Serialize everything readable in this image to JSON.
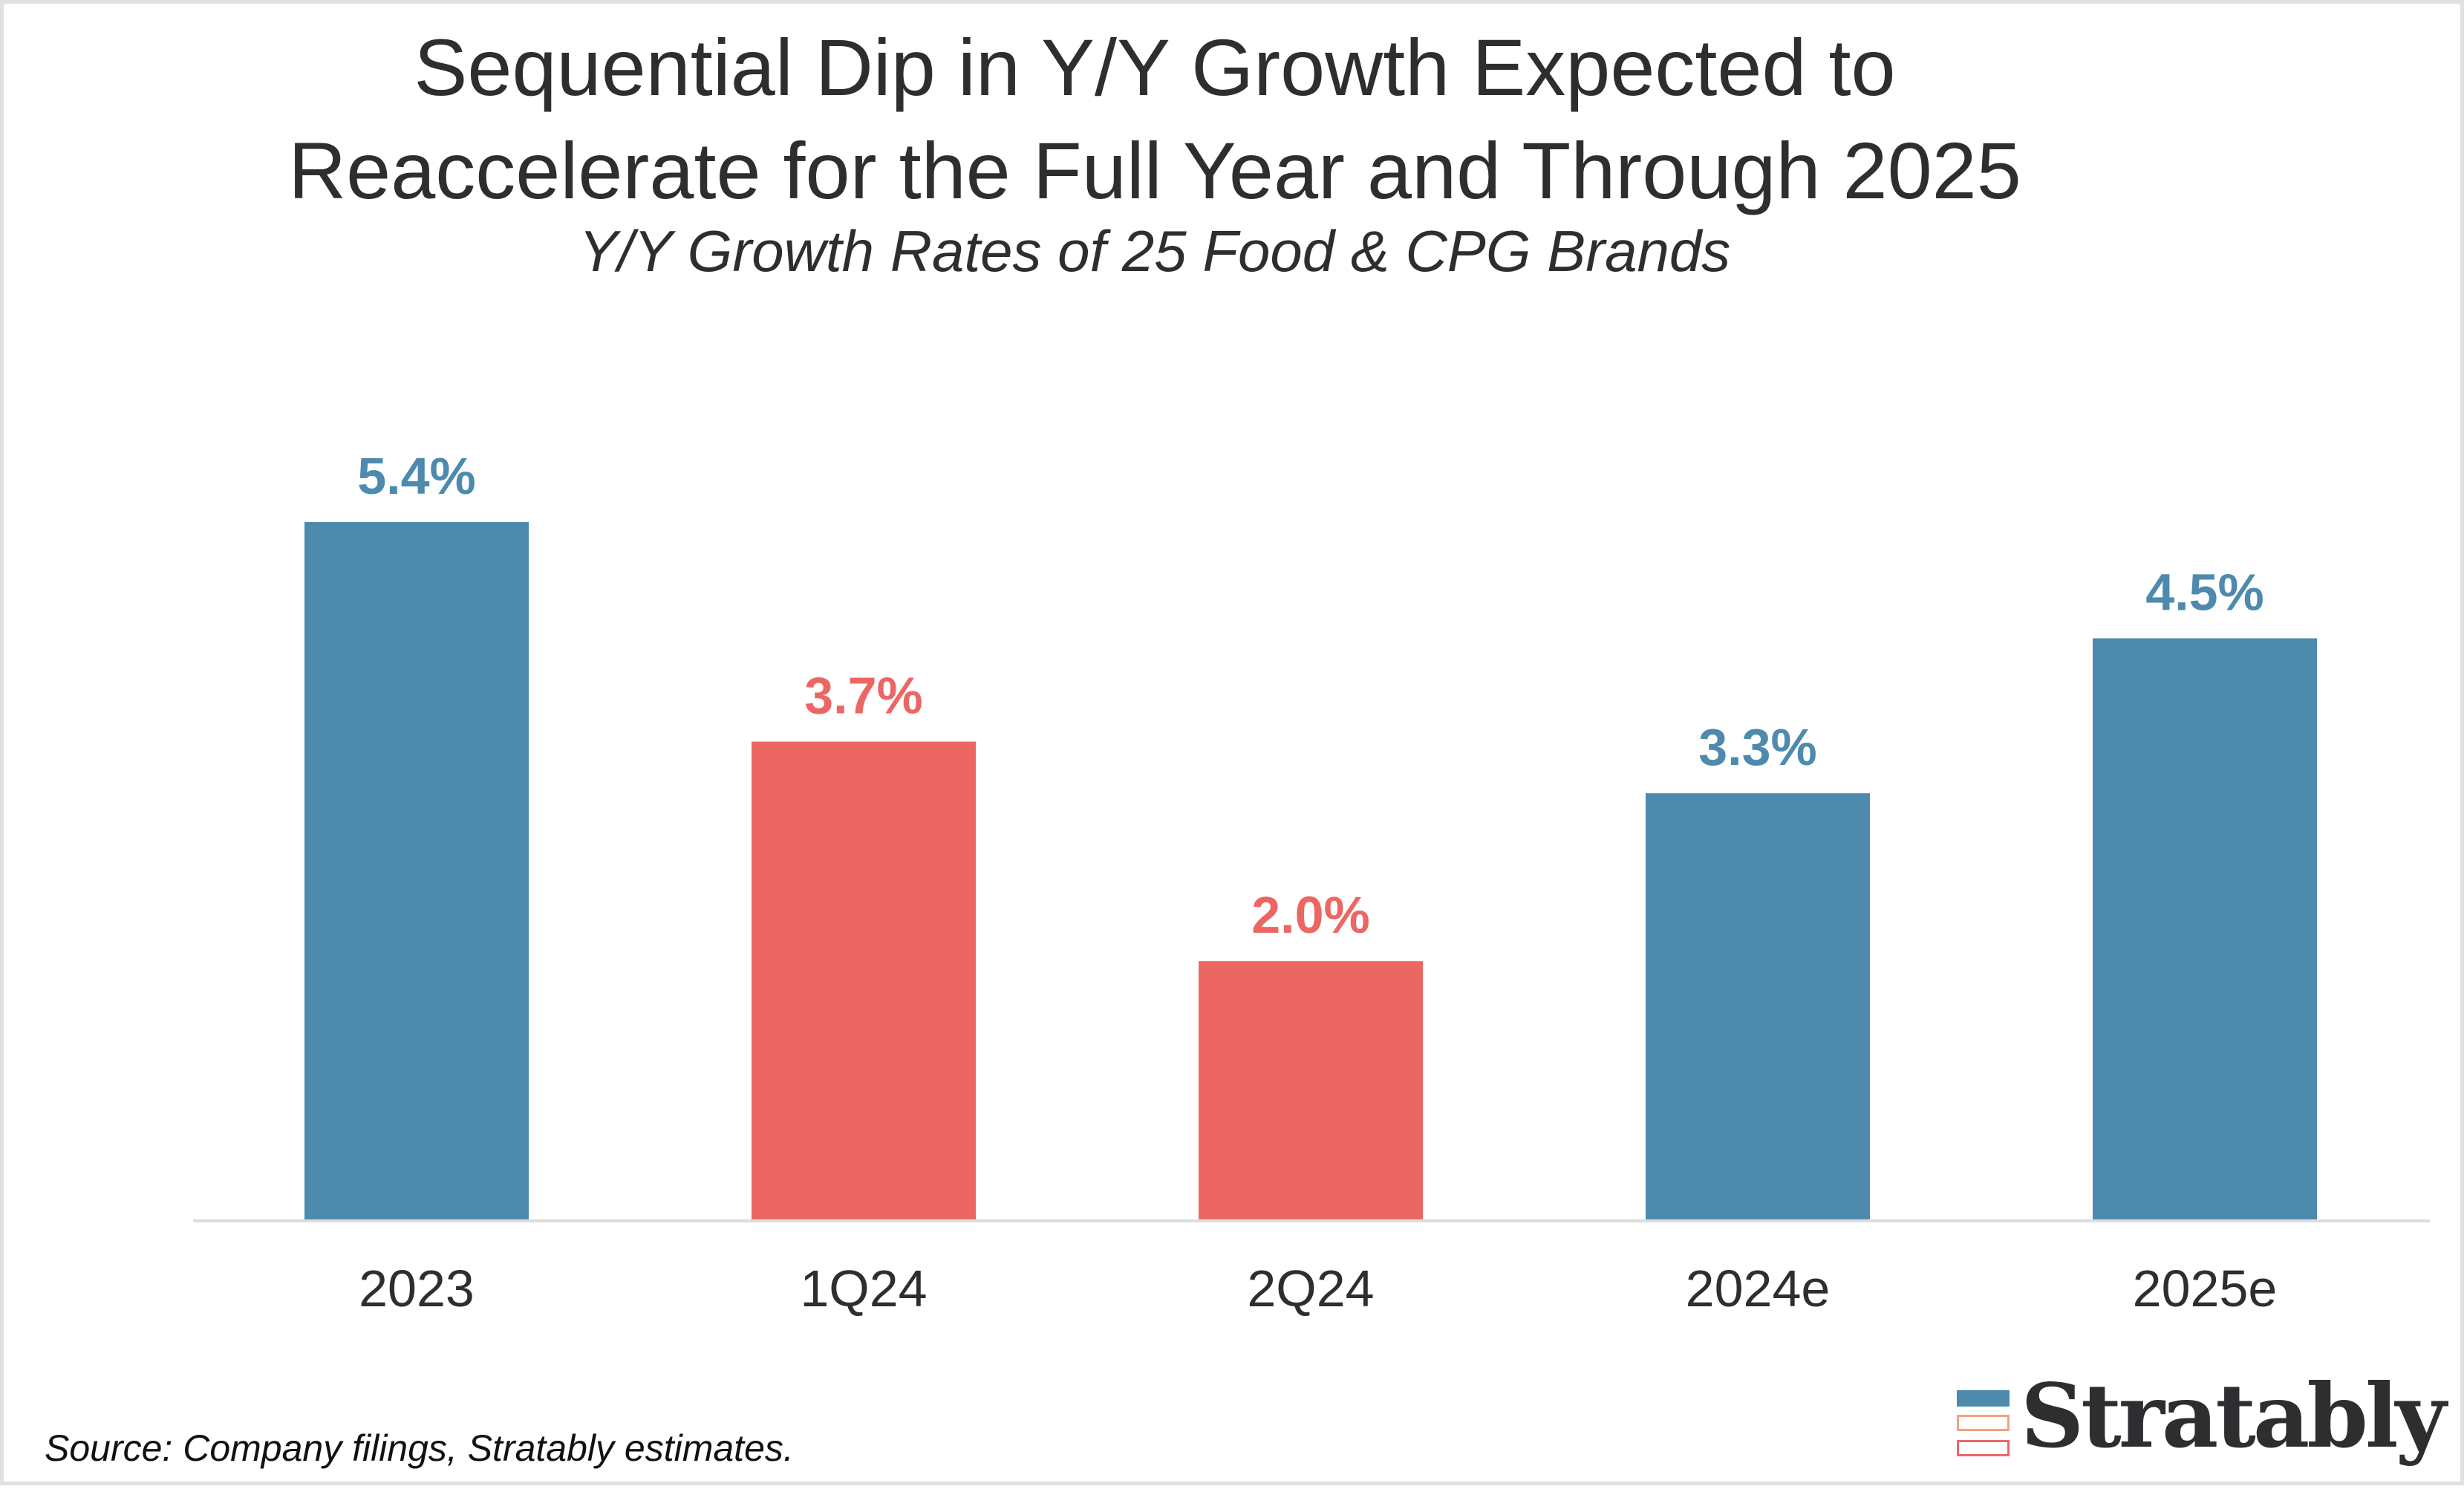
{
  "title_lines": [
    "Sequential Dip in Y/Y Growth Expected to",
    "Reaccelerate for the Full Year and Through 2025"
  ],
  "subtitle": "Y/Y Growth Rates of 25 Food & CPG Brands",
  "source": "Source: Company filings, Stratably estimates.",
  "logo": {
    "text": "Stratably",
    "icon": "stacked-bars-logo-icon"
  },
  "colors": {
    "blue": "#4E8AAE",
    "red": "#EC6764",
    "text": "#2E2E30",
    "axis": "#DDDDDD"
  },
  "chart_data": {
    "type": "bar",
    "title": "Sequential Dip in Y/Y Growth Expected to Reaccelerate for the Full Year and Through 2025",
    "subtitle": "Y/Y Growth Rates of 25 Food & CPG Brands",
    "xlabel": "",
    "ylabel": "",
    "categories": [
      "2023",
      "1Q24",
      "2Q24",
      "2024e",
      "2025e"
    ],
    "values": [
      5.4,
      3.7,
      2.0,
      3.3,
      4.5
    ],
    "data_labels": [
      "5.4%",
      "3.7%",
      "2.0%",
      "3.3%",
      "4.5%"
    ],
    "bar_colors": [
      "#4E8AAE",
      "#EC6764",
      "#EC6764",
      "#4E8AAE",
      "#4E8AAE"
    ],
    "unit": "%",
    "ylim": [
      0,
      5.4
    ],
    "grid": false,
    "y_axis_visible": false,
    "legend": "none"
  }
}
